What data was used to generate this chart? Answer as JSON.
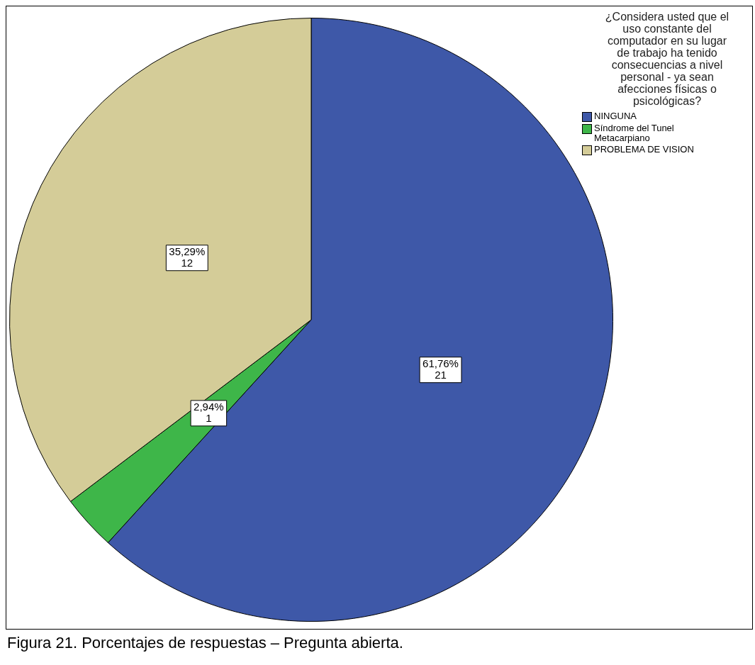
{
  "chart_data": {
    "type": "pie",
    "legend_title": "¿Considera usted que el uso constante del computador en su lugar de trabajo ha tenido consecuencias a nivel personal  - ya sean afecciones físicas o psicológicas?",
    "categories": [
      "NINGUNA",
      "Síndrome del Tunel Metacarpiano",
      "PROBLEMA DE VISION"
    ],
    "values": [
      21,
      1,
      12
    ],
    "value_labels": [
      "61,76%\n21",
      "2,94%\n1",
      "35,29%\n12"
    ],
    "colors": [
      "#3e58a8",
      "#3eb649",
      "#d4cc98"
    ],
    "legend": "top right",
    "annotations": [
      "Figura 21. Porcentajes de respuestas – Pregunta abierta."
    ]
  }
}
